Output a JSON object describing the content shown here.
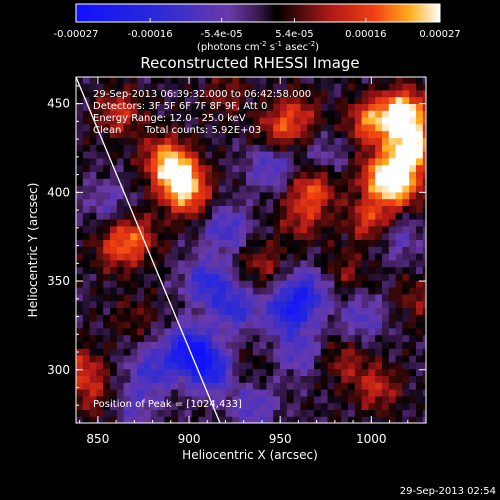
{
  "chart_data": {
    "type": "heatmap",
    "title": "Reconstructed RHESSI Image",
    "xlabel": "Heliocentric X (arcsec)",
    "ylabel": "Heliocentric Y (arcsec)",
    "x_ticks": [
      "850",
      "900",
      "950",
      "1000"
    ],
    "y_ticks": [
      "300",
      "350",
      "400",
      "450"
    ],
    "xlim": [
      838,
      1030
    ],
    "ylim": [
      270,
      465
    ],
    "colorbar": {
      "ticks": [
        "-0.00027",
        "-0.00016",
        "-5.4e-05",
        "5.4e-05",
        "0.00016",
        "0.00027"
      ],
      "range": [
        -0.00027,
        0.00027
      ],
      "unit_prefix": "(photons cm",
      "unit_e1": "-2",
      "unit_mid": " s",
      "unit_e2": "-1",
      "unit_mid2": " asec",
      "unit_e3": "-2",
      "unit_suffix": ")"
    },
    "annotations": {
      "time_range": "29-Sep-2013 06:39:32.000 to 06:42:58.000",
      "detectors": "Detectors: 3F 5F 6F 7F 8F 9F, Att 0",
      "energy": "Energy Range: 12.0 - 25.0 keV",
      "algorithm": "Clean",
      "counts": "Total counts: 5.92E+03",
      "peak": "Position of Peak = [1024,433]"
    },
    "limb_line": {
      "x": [
        838,
        917
      ],
      "y": [
        465,
        270
      ]
    },
    "hot_regions": [
      {
        "x": 1018,
        "y": 445,
        "value": 0.00027
      },
      {
        "x": 1022,
        "y": 425,
        "value": 0.00027
      },
      {
        "x": 1015,
        "y": 405,
        "value": 0.00022
      },
      {
        "x": 1000,
        "y": 440,
        "value": 0.00018
      },
      {
        "x": 1005,
        "y": 410,
        "value": 0.00016
      },
      {
        "x": 1000,
        "y": 385,
        "value": 0.00014
      },
      {
        "x": 895,
        "y": 408,
        "value": 0.00024
      },
      {
        "x": 887,
        "y": 420,
        "value": 0.00016
      },
      {
        "x": 900,
        "y": 396,
        "value": 0.00012
      },
      {
        "x": 870,
        "y": 375,
        "value": 0.00013
      },
      {
        "x": 860,
        "y": 368,
        "value": 0.0001
      },
      {
        "x": 968,
        "y": 402,
        "value": 0.00015
      },
      {
        "x": 962,
        "y": 385,
        "value": 9e-05
      },
      {
        "x": 950,
        "y": 435,
        "value": 0.00012
      },
      {
        "x": 960,
        "y": 445,
        "value": 9e-05
      },
      {
        "x": 862,
        "y": 445,
        "value": 0.00012
      },
      {
        "x": 940,
        "y": 360,
        "value": 8e-05
      },
      {
        "x": 985,
        "y": 355,
        "value": 7e-05
      },
      {
        "x": 1003,
        "y": 290,
        "value": 0.00011
      },
      {
        "x": 985,
        "y": 305,
        "value": 8e-05
      },
      {
        "x": 840,
        "y": 300,
        "value": 0.00012
      },
      {
        "x": 848,
        "y": 285,
        "value": 7e-05
      },
      {
        "x": 920,
        "y": 455,
        "value": 7e-05
      },
      {
        "x": 870,
        "y": 330,
        "value": 5e-05
      },
      {
        "x": 1025,
        "y": 340,
        "value": 7e-05
      },
      {
        "x": 930,
        "y": 300,
        "value": 4e-05
      }
    ],
    "cold_regions": [
      {
        "x": 900,
        "y": 312,
        "value": -0.00024
      },
      {
        "x": 912,
        "y": 300,
        "value": -0.0002
      },
      {
        "x": 955,
        "y": 333,
        "value": -0.00019
      },
      {
        "x": 965,
        "y": 345,
        "value": -0.00015
      },
      {
        "x": 910,
        "y": 350,
        "value": -0.00016
      },
      {
        "x": 925,
        "y": 335,
        "value": -0.00015
      },
      {
        "x": 920,
        "y": 380,
        "value": -0.00013
      },
      {
        "x": 945,
        "y": 415,
        "value": -0.00012
      },
      {
        "x": 995,
        "y": 330,
        "value": -0.0001
      },
      {
        "x": 880,
        "y": 300,
        "value": -0.00013
      },
      {
        "x": 935,
        "y": 280,
        "value": -0.00011
      },
      {
        "x": 1015,
        "y": 375,
        "value": -8e-05
      },
      {
        "x": 855,
        "y": 395,
        "value": -7e-05
      },
      {
        "x": 975,
        "y": 420,
        "value": -6e-05
      },
      {
        "x": 870,
        "y": 280,
        "value": -8e-05
      },
      {
        "x": 960,
        "y": 310,
        "value": -0.0001
      }
    ]
  },
  "footer": {
    "timestamp": "29-Sep-2013 02:54"
  }
}
